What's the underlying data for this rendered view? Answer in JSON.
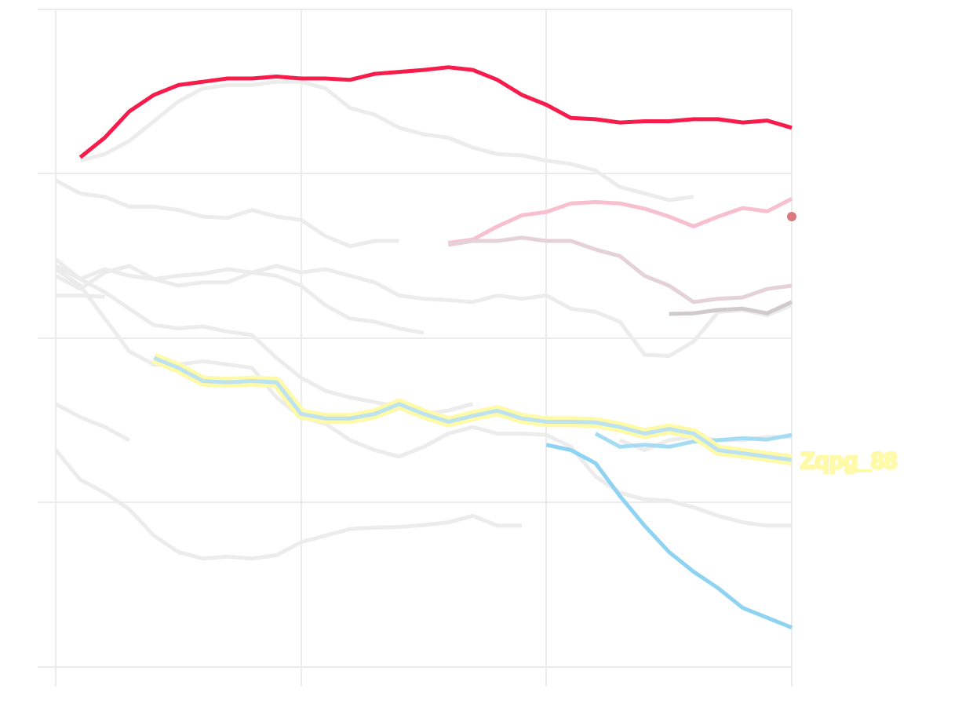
{
  "chart_data": {
    "type": "line",
    "title": "",
    "xlabel": "",
    "ylabel": "",
    "xlim": [
      0,
      30
    ],
    "ylim": [
      0,
      100
    ],
    "grid": true,
    "x_gridlines": [
      0,
      10,
      20,
      30
    ],
    "y_gridlines": [
      0,
      25,
      50,
      75,
      100
    ],
    "background_series": [
      {
        "values": [
          null,
          77,
          78,
          80,
          83,
          86,
          88,
          88.5,
          88.5,
          89,
          89,
          88,
          85,
          84,
          82,
          81,
          80.5,
          79,
          78,
          77.8,
          77,
          76.5,
          75.5,
          73,
          72,
          71,
          71.5,
          null,
          null,
          null,
          null
        ]
      },
      {
        "values": [
          74,
          72,
          71.5,
          70,
          70,
          69.5,
          68.5,
          68.3,
          69.5,
          68.5,
          68,
          65.5,
          64,
          64.8,
          64.8,
          null,
          null,
          null,
          null,
          null,
          null,
          null,
          null,
          null,
          null,
          null,
          null,
          null,
          null,
          null,
          null
        ]
      },
      {
        "values": [
          62,
          59,
          60.5,
          59.5,
          59,
          59.5,
          59.8,
          60.5,
          60,
          61,
          60,
          60.5,
          59.5,
          58.5,
          56.5,
          56,
          55.8,
          55.5,
          56.5,
          56,
          56.5,
          54.5,
          54,
          52.5,
          47.5,
          47.3,
          49.5,
          54,
          54.3,
          53.5,
          55
        ]
      },
      {
        "values": [
          61,
          59,
          57,
          54.5,
          52,
          51.5,
          51.8,
          51,
          50.5,
          47,
          44,
          42,
          41,
          40.3,
          39.5,
          38.5,
          39,
          40,
          null,
          null,
          null,
          null,
          null,
          null,
          null,
          null,
          null,
          null,
          null,
          null,
          null
        ]
      },
      {
        "values": [
          59.5,
          57.5,
          60,
          61,
          59,
          58,
          58.5,
          58.5,
          60,
          59.5,
          58,
          55,
          53,
          52.5,
          51.5,
          50.8,
          null,
          null,
          null,
          null,
          null,
          null,
          null,
          null,
          null,
          null,
          null,
          null,
          null,
          null,
          null
        ]
      },
      {
        "values": [
          56.5,
          56.5,
          56.3,
          null,
          null,
          null,
          null,
          null,
          null,
          null,
          null,
          null,
          null,
          null,
          null,
          null,
          null,
          null,
          null,
          null,
          null,
          null,
          null,
          null,
          null,
          null,
          null,
          null,
          null,
          null,
          null
        ]
      },
      {
        "values": [
          60.5,
          58,
          53,
          48,
          46,
          46,
          46.5,
          46,
          45.5,
          41,
          38,
          37,
          34.5,
          33,
          32,
          33.5,
          35.5,
          36.5,
          35.5,
          35.5,
          35.3,
          33.5,
          29,
          26.5,
          25.5,
          25.3,
          24.3,
          23,
          22,
          21.5,
          21.5
        ]
      },
      {
        "values": [
          40,
          38,
          36.5,
          34.5,
          null,
          null,
          null,
          null,
          null,
          null,
          null,
          null,
          null,
          null,
          null,
          null,
          null,
          null,
          null,
          null,
          null,
          null,
          null,
          null,
          null,
          null,
          null,
          null,
          null,
          null,
          null
        ]
      },
      {
        "values": [
          33,
          28.5,
          26.5,
          24,
          20,
          17.5,
          16.5,
          16.8,
          16.5,
          17,
          19,
          20,
          21,
          21.2,
          21.3,
          21.6,
          22,
          23,
          21.5,
          21.5,
          null,
          null,
          null,
          null,
          null,
          null,
          null,
          null,
          null,
          null,
          null
        ]
      },
      {
        "values": [
          null,
          null,
          null,
          null,
          null,
          null,
          null,
          null,
          null,
          null,
          null,
          null,
          null,
          null,
          null,
          null,
          null,
          null,
          null,
          null,
          null,
          null,
          null,
          34.5,
          33,
          34.5,
          35,
          34.5,
          34.5,
          35,
          35
        ]
      }
    ],
    "highlight_segments": [
      {
        "color": "#f71c4b",
        "values": [
          null,
          77.5,
          80.5,
          84.5,
          87,
          88.5,
          89,
          89.5,
          89.5,
          89.8,
          89.5,
          89.5,
          89.3,
          90.2,
          90.5,
          90.8,
          91.2,
          90.8,
          89.3,
          87,
          85.5,
          83.5,
          83.3,
          82.8,
          83,
          83,
          83.3,
          83.3,
          82.8,
          83.1,
          82
        ]
      },
      {
        "color": "#f8c0cf",
        "values": [
          null,
          null,
          null,
          null,
          null,
          null,
          null,
          null,
          null,
          null,
          null,
          null,
          null,
          null,
          null,
          null,
          64.5,
          65,
          67,
          68.7,
          69.2,
          70.5,
          70.7,
          70.5,
          69.7,
          68.5,
          67,
          68.5,
          69.8,
          69.3,
          71.2
        ]
      },
      {
        "color": "#e4d2d8",
        "values": [
          null,
          null,
          null,
          null,
          null,
          null,
          null,
          null,
          null,
          null,
          null,
          null,
          null,
          null,
          null,
          null,
          64.2,
          64.8,
          64.8,
          65.3,
          64.8,
          64.8,
          63.5,
          62.5,
          59.5,
          58,
          55.5,
          56,
          56.2,
          57.5,
          58
        ]
      },
      {
        "color": "#d0cacd",
        "values": [
          null,
          null,
          null,
          null,
          null,
          null,
          null,
          null,
          null,
          null,
          null,
          null,
          null,
          null,
          null,
          null,
          null,
          null,
          null,
          null,
          null,
          null,
          null,
          null,
          null,
          53.7,
          53.8,
          54.3,
          54.5,
          53.8,
          55.5
        ]
      },
      {
        "color": "#8fd3f3",
        "values": [
          null,
          null,
          null,
          null,
          null,
          null,
          null,
          null,
          null,
          null,
          null,
          null,
          null,
          null,
          null,
          null,
          null,
          null,
          null,
          null,
          33.8,
          33,
          31,
          26,
          21.5,
          17.5,
          14.5,
          12,
          9,
          7.5,
          6
        ]
      },
      {
        "color": "#a4dcf4",
        "values": [
          null,
          null,
          null,
          null,
          null,
          null,
          null,
          null,
          null,
          null,
          null,
          null,
          null,
          null,
          null,
          null,
          null,
          null,
          null,
          null,
          null,
          null,
          35.5,
          33.5,
          33.8,
          33.5,
          34.3,
          34.5,
          34.8,
          34.6,
          35.3
        ]
      }
    ],
    "focus_series": {
      "name": "",
      "color": "#fffaa8",
      "inner_color": "#bde3f0",
      "end_label": "Zqpg_88",
      "values": [
        null,
        null,
        null,
        null,
        47,
        45.5,
        43.5,
        43.3,
        43.5,
        43.3,
        38.5,
        37.8,
        37.8,
        38.5,
        40,
        38.5,
        37.3,
        38.2,
        39,
        37.8,
        37.3,
        37.3,
        37.2,
        36.5,
        35.5,
        36.2,
        35.5,
        33,
        32.5,
        32,
        31.5
      ]
    },
    "end_point": {
      "x": 30,
      "y": 68.5,
      "color": "#d97b7e"
    }
  }
}
